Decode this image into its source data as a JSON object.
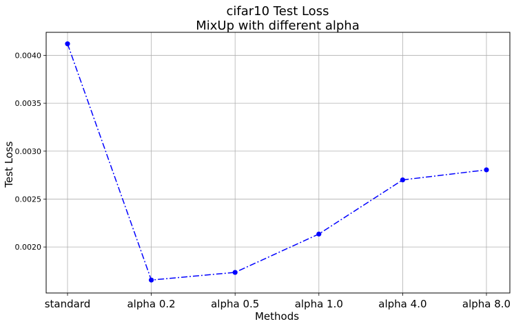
{
  "chart_data": {
    "type": "line",
    "title": "cifar10 Test Loss",
    "subtitle": "MixUp with different alpha",
    "xlabel": "Methods",
    "ylabel": "Test Loss",
    "categories": [
      "standard",
      "alpha 0.2",
      "alpha 0.5",
      "alpha 1.0",
      "alpha 4.0",
      "alpha 8.0"
    ],
    "series": [
      {
        "values": [
          0.00412,
          0.001655,
          0.001735,
          0.002135,
          0.0027,
          0.002805
        ]
      }
    ],
    "yticks": [
      "0.0020",
      "0.0025",
      "0.0030",
      "0.0035",
      "0.0040"
    ],
    "yticks_values": [
      0.002,
      0.0025,
      0.003,
      0.0035,
      0.004
    ],
    "ylim": [
      0.00152,
      0.00424
    ],
    "grid": true,
    "line_color": "#0000ff",
    "line_style": "dash-dot",
    "marker": "circle"
  }
}
